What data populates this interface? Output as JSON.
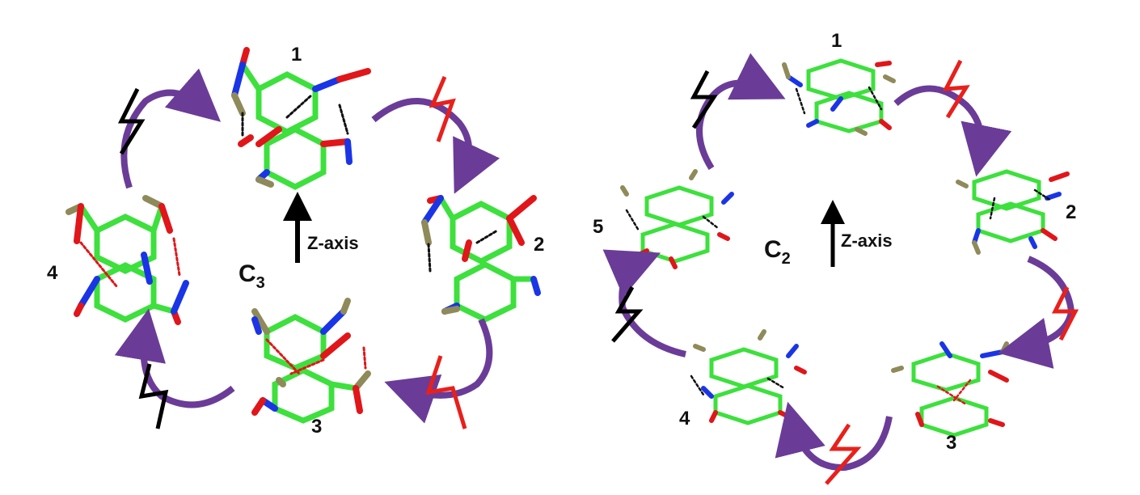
{
  "left_panel": {
    "symmetry": {
      "symbol": "C",
      "subscript": "3"
    },
    "axis_label": "Z-axis",
    "structure_labels": [
      "1",
      "2",
      "3",
      "4"
    ]
  },
  "right_panel": {
    "symmetry": {
      "symbol": "C",
      "subscript": "2"
    },
    "axis_label": "Z-axis",
    "structure_labels": [
      "1",
      "2",
      "3",
      "4",
      "5"
    ]
  },
  "colors": {
    "carbon": "#3de03d",
    "oxygen": "#e0161a",
    "nitrogen": "#1a35e6",
    "methyl": "#8f8a5a",
    "cycle_arrow": "#6a3c98",
    "excitation_black": "#000000",
    "excitation_red": "#e8201c",
    "hbond_black": "#111111",
    "hbond_red": "#e0161a"
  }
}
